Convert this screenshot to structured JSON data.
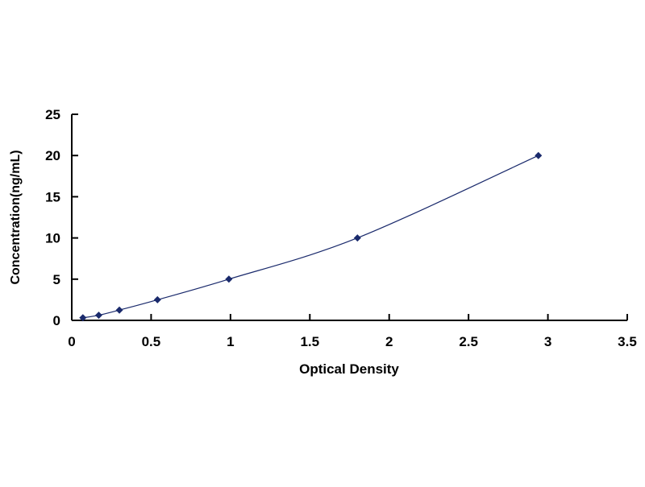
{
  "chart_data": {
    "type": "line",
    "title": "",
    "xlabel": "Optical Density",
    "ylabel": "Concentration(ng/mL)",
    "xlim": [
      0,
      3.5
    ],
    "ylim": [
      0,
      25
    ],
    "x_ticks": [
      "0",
      "0.5",
      "1",
      "1.5",
      "2",
      "2.5",
      "3",
      "3.5"
    ],
    "y_ticks": [
      "0",
      "5",
      "10",
      "15",
      "20",
      "25"
    ],
    "grid": false,
    "legend": "none",
    "series": [
      {
        "x": [
          0.07,
          0.17,
          0.3,
          0.54,
          0.99,
          1.8,
          2.94
        ],
        "y": [
          0.312,
          0.625,
          1.25,
          2.5,
          5,
          10,
          20
        ],
        "marker": "diamond",
        "color": "#1a2a6c"
      }
    ]
  }
}
